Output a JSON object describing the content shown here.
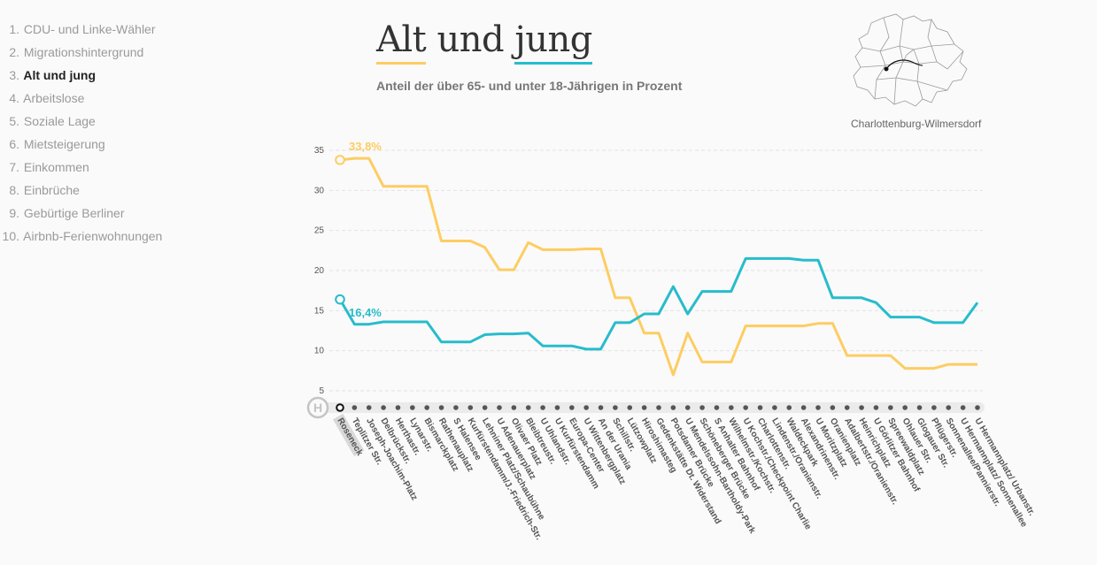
{
  "nav": {
    "items": [
      {
        "num": "1.",
        "label": "CDU- und Linke-Wähler"
      },
      {
        "num": "2.",
        "label": "Migrationshintergrund"
      },
      {
        "num": "3.",
        "label": "Alt und jung",
        "active": true
      },
      {
        "num": "4.",
        "label": "Arbeitslose"
      },
      {
        "num": "5.",
        "label": "Soziale Lage"
      },
      {
        "num": "6.",
        "label": "Mietsteigerung"
      },
      {
        "num": "7.",
        "label": "Einkommen"
      },
      {
        "num": "8.",
        "label": "Einbrüche"
      },
      {
        "num": "9.",
        "label": "Gebürtige Berliner"
      },
      {
        "num": "10.",
        "label": "Airbnb-Ferienwohnungen"
      }
    ]
  },
  "header": {
    "title_word1": "Alt",
    "title_word2": "und",
    "title_word3": "jung",
    "subtitle": "Anteil der über 65- und unter 18-Jährigen in Prozent"
  },
  "map": {
    "district": "Charlottenburg-Wilmersdorf",
    "icon": "berlin-district-map-icon"
  },
  "colors": {
    "old": "#fdcd62",
    "young": "#27bccc",
    "grid": "#e3e3e3",
    "text": "#555555",
    "stop_dot": "#555555"
  },
  "chart_data": {
    "type": "line",
    "ylim": [
      3,
      36
    ],
    "yticks": [
      5,
      10,
      15,
      20,
      25,
      30,
      35
    ],
    "grid": true,
    "start_icon": "H",
    "selected_stop": "Roseneck",
    "categories": [
      "Roseneck",
      "Teplitzer Str.",
      "Joseph-Joachim-Platz",
      "Delbrückstr.",
      "Herthastr.",
      "Lynarstr.",
      "Bismarckplatz",
      "Rathenauplatz",
      "S Halensee",
      "Kurfürstendamm/J.-Friedrich-Str.",
      "Lehniner Platz/Schaubühne",
      "U Adenauerplatz",
      "Olivaer Platz",
      "Bleibtreustr.",
      "U Uhlandstr.",
      "U Kurfürstendamm",
      "Europa-Center",
      "U Wittenbergplatz",
      "An der Urania",
      "Schillstr.",
      "Lützowplatz",
      "Hiroshimasteg",
      "Gedenkstätte Dt. Widerstand",
      "Potsdamer Brücke",
      "U Mendelssohn-Bartholdy-Park",
      "Schöneberger Brücke",
      "S Anhalter Bahnhof",
      "Wilhelmstr./Kochstr.",
      "U Kochstr./Checkpoint Charlie",
      "Charlottenstr.",
      "Lindenstr./Oranienstr.",
      "Waldeckpark",
      "Alexandrinenstr.",
      "U Moritzplatz",
      "Oranienplatz",
      "Adalbertstr./Oranienstr.",
      "Heinrichplatz",
      "U Görlitzer Bahnhof",
      "Spreewaldplatz",
      "Ohlauer Str.",
      "Glogauer Str.",
      "Pflügerstr.",
      "Sonnenallee/Pannierstr.",
      "U Hermannplatz/ Sonnenallee",
      "U Hermannplatz/ Urbanstr."
    ],
    "series": [
      {
        "key": "old",
        "end_label": "33,8%",
        "values": [
          33.8,
          34.0,
          34.0,
          30.5,
          30.5,
          30.5,
          30.5,
          23.7,
          23.7,
          23.7,
          22.9,
          20.1,
          20.1,
          23.5,
          22.6,
          22.6,
          22.6,
          22.7,
          22.7,
          16.6,
          16.6,
          12.2,
          12.2,
          7.0,
          12.2,
          8.6,
          8.6,
          8.6,
          13.1,
          13.1,
          13.1,
          13.1,
          13.1,
          13.4,
          13.4,
          9.4,
          9.4,
          9.4,
          9.4,
          7.8,
          7.8,
          7.8,
          8.3,
          8.3,
          8.3
        ]
      },
      {
        "key": "young",
        "end_label": "16,4%",
        "values": [
          16.4,
          13.3,
          13.3,
          13.6,
          13.6,
          13.6,
          13.6,
          11.1,
          11.1,
          11.1,
          12.0,
          12.1,
          12.1,
          12.2,
          10.6,
          10.6,
          10.6,
          10.2,
          10.2,
          13.5,
          13.5,
          14.6,
          14.6,
          18.0,
          14.6,
          17.4,
          17.4,
          17.4,
          21.5,
          21.5,
          21.5,
          21.5,
          21.3,
          21.3,
          16.6,
          16.6,
          16.6,
          16.0,
          14.2,
          14.2,
          14.2,
          13.5,
          13.5,
          13.5,
          16.0
        ]
      }
    ]
  }
}
